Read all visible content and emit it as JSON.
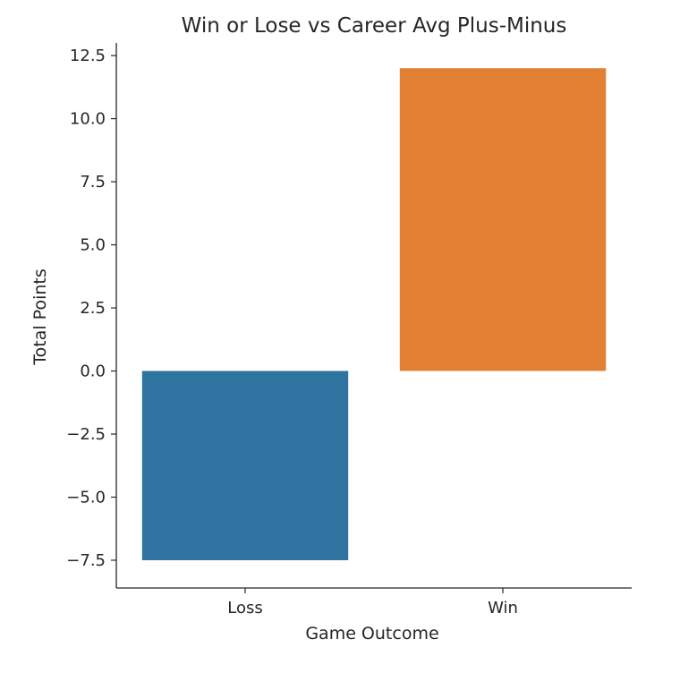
{
  "chart_data": {
    "type": "bar",
    "title": "Win or Lose vs Career Avg Plus-Minus",
    "xlabel": "Game Outcome",
    "ylabel": "Total Points",
    "categories": [
      "Loss",
      "Win"
    ],
    "values": [
      -7.5,
      12.0
    ],
    "colors": [
      "#2f73a1",
      "#e18033"
    ],
    "ylim": [
      -8.6,
      13.0
    ],
    "yticks": [
      12.5,
      10.0,
      7.5,
      5.0,
      2.5,
      0.0,
      -2.5,
      -5.0,
      -7.5
    ],
    "ytick_labels": [
      "12.5",
      "10.0",
      "7.5",
      "5.0",
      "2.5",
      "0.0",
      "−2.5",
      "−5.0",
      "−7.5"
    ],
    "grid": false,
    "legend": "none"
  }
}
